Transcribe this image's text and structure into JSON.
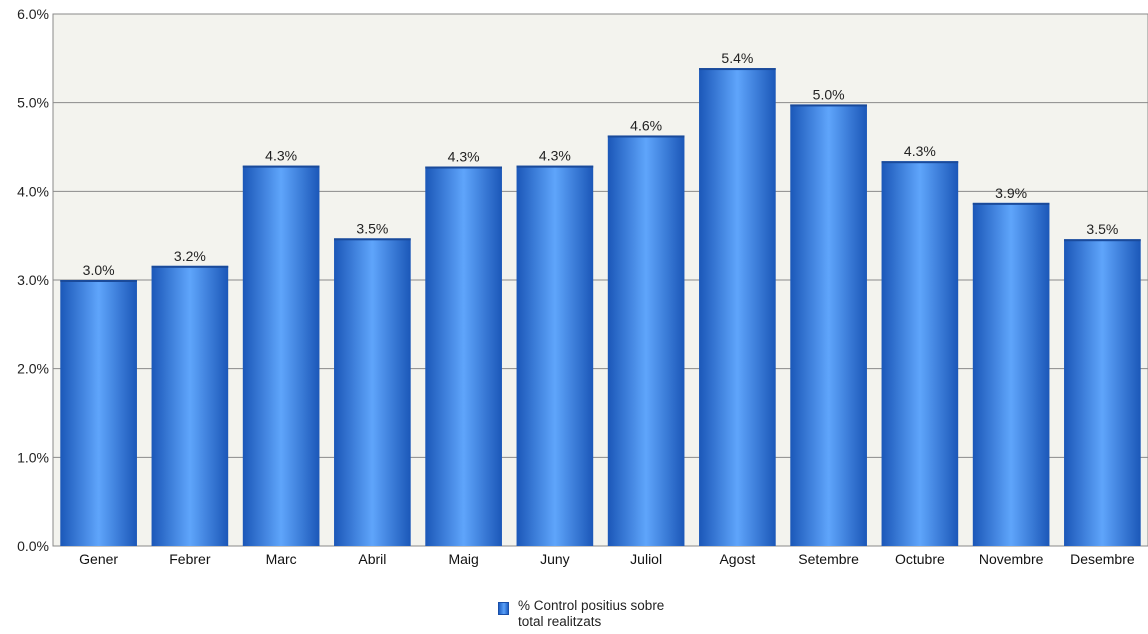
{
  "chart_data": {
    "type": "bar",
    "categories": [
      "Gener",
      "Febrer",
      "Marc",
      "Abril",
      "Maig",
      "Juny",
      "Juliol",
      "Agost",
      "Setembre",
      "Octubre",
      "Novembre",
      "Desembre"
    ],
    "values": [
      3.0,
      3.16,
      4.29,
      3.47,
      4.28,
      4.29,
      4.63,
      5.39,
      4.98,
      4.34,
      3.87,
      3.46
    ],
    "data_labels": [
      "3.0%",
      "3.2%",
      "4.3%",
      "3.5%",
      "4.3%",
      "4.3%",
      "4.6%",
      "5.4%",
      "5.0%",
      "4.3%",
      "3.9%",
      "3.5%"
    ],
    "y_ticks": [
      "0.0%",
      "1.0%",
      "2.0%",
      "3.0%",
      "4.0%",
      "5.0%",
      "6.0%"
    ],
    "ylim": [
      0,
      6
    ],
    "grid": true,
    "legend_position": "bottom",
    "series_name": "% Control positius sobre total realitzats",
    "colors": {
      "bar_dark": "#1e5fc4",
      "bar_light": "#5aa0f8",
      "plot_bg": "#f3f3ee",
      "grid": "#8a8a8a"
    }
  },
  "legend": {
    "line1": "% Control positius sobre",
    "line2": "total realitzats"
  }
}
